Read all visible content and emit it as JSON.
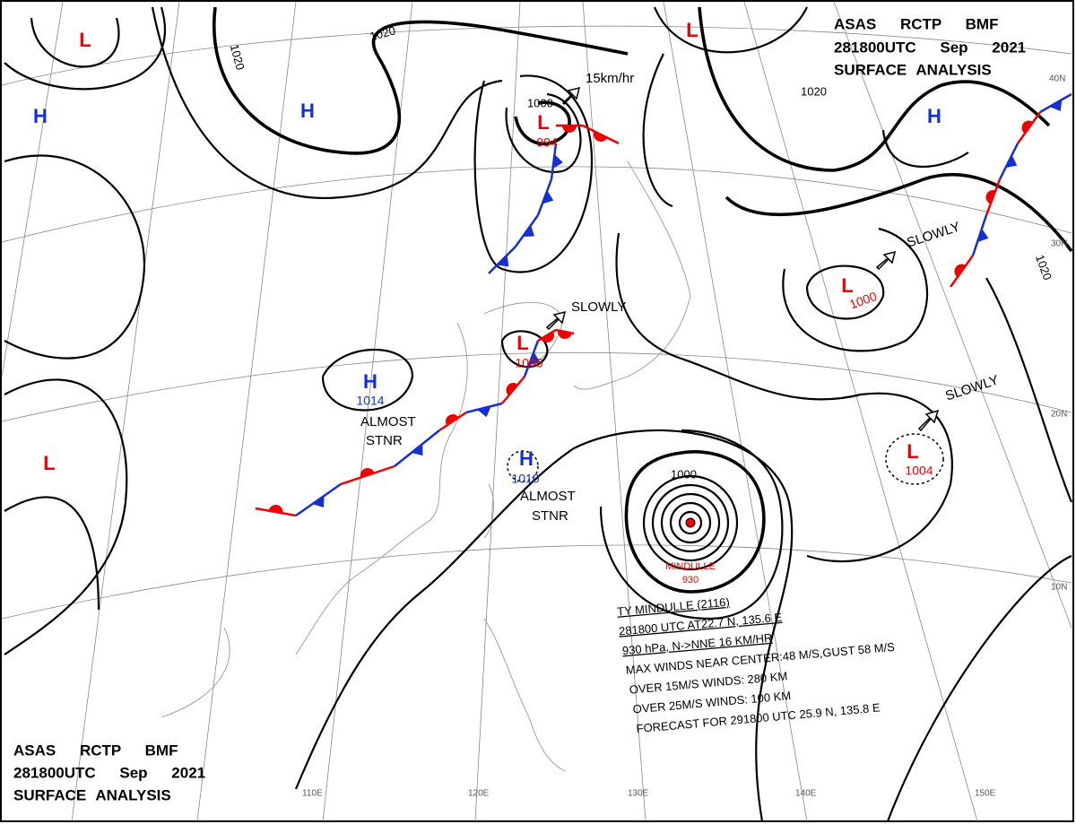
{
  "header": {
    "lines": [
      "ASAS RCTP BMF",
      "281800UTC Sep 2021",
      "SURFACE ANALYSIS"
    ]
  },
  "centers": [
    {
      "symbol": "L"
    },
    {
      "symbol": "H"
    },
    {
      "symbol": "H"
    },
    {
      "symbol": "L",
      "pressure": "994"
    },
    {
      "symbol": "L"
    },
    {
      "symbol": "H"
    },
    {
      "symbol": "L",
      "pressure": "1000"
    },
    {
      "symbol": "H",
      "pressure": "1014"
    },
    {
      "symbol": "L",
      "pressure": "1006"
    },
    {
      "symbol": "H",
      "pressure": "1010"
    },
    {
      "symbol": "L"
    },
    {
      "symbol": "L",
      "pressure": "1004"
    }
  ],
  "isobar_labels": [
    "1020",
    "1020",
    "1000",
    "1020",
    "1020",
    "1000"
  ],
  "motion_labels": [
    "15km/hr",
    "SLOWLY",
    "SLOWLY",
    "SLOWLY",
    "ALMOST",
    "STNR",
    "ALMOST",
    "STNR"
  ],
  "typhoon": {
    "name": "MINDULLE",
    "pressure": "930",
    "info": [
      "TY MINDULLE (2116)",
      "281800 UTC AT22.7 N, 135.6 E",
      "930 hPa, N->NNE 16 KM/HR",
      "MAX WINDS NEAR CENTER:48 M/S,GUST 58 M/S",
      "OVER 15M/S WINDS: 280 KM",
      "OVER 25M/S WINDS: 100 KM",
      "FORECAST FOR 291800 UTC 25.9 N, 135.8 E"
    ]
  },
  "grid_labels": {
    "latitudes": [
      "40N",
      "30N",
      "20N",
      "10N"
    ],
    "longitudes": [
      "110E",
      "120E",
      "130E",
      "140E",
      "150E"
    ]
  }
}
